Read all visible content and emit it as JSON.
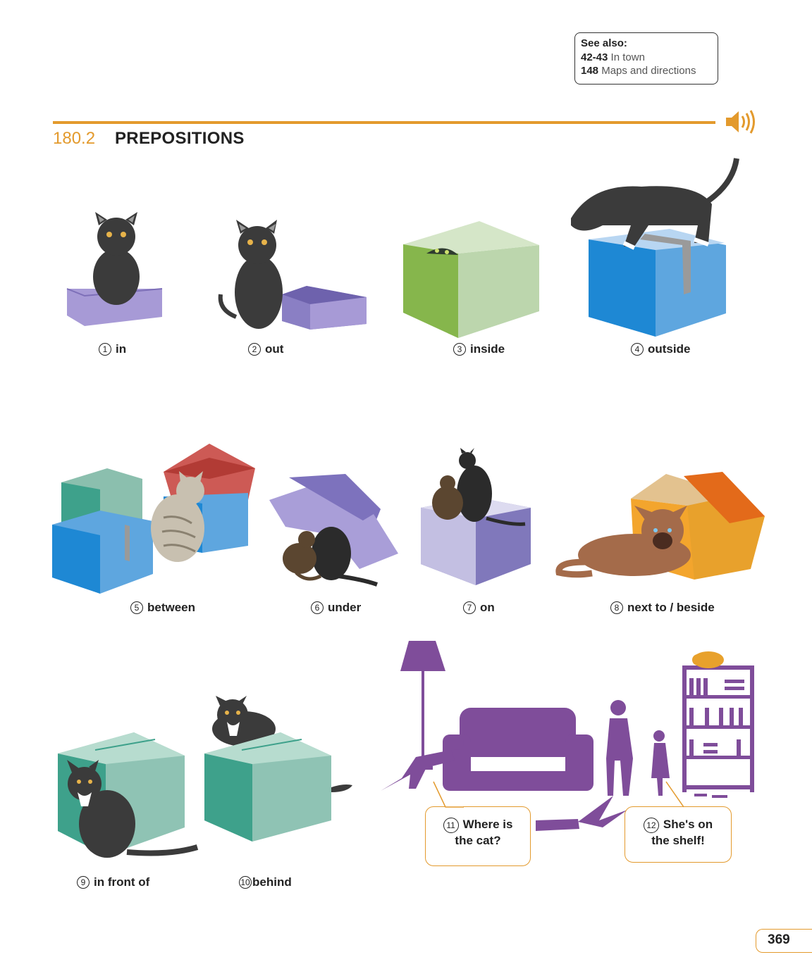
{
  "see_also": {
    "heading": "See also:",
    "items": [
      {
        "ref": "42-43",
        "text": "In town"
      },
      {
        "ref": "148",
        "text": "Maps and directions"
      }
    ]
  },
  "section": {
    "number": "180.2",
    "title": "PREPOSITIONS"
  },
  "items": [
    {
      "num": "1",
      "label": "in"
    },
    {
      "num": "2",
      "label": "out"
    },
    {
      "num": "3",
      "label": "inside"
    },
    {
      "num": "4",
      "label": "outside"
    },
    {
      "num": "5",
      "label": "between"
    },
    {
      "num": "6",
      "label": "under"
    },
    {
      "num": "7",
      "label": "on"
    },
    {
      "num": "8",
      "label": "next to / beside"
    },
    {
      "num": "9",
      "label": "in front of"
    },
    {
      "num": "10",
      "label": "behind"
    }
  ],
  "bubbles": [
    {
      "num": "11",
      "line1": "Where is",
      "line2": "the cat?"
    },
    {
      "num": "12",
      "line1": "She's on",
      "line2": "the shelf!"
    }
  ],
  "page_number": "369",
  "colors": {
    "accent": "#e39a2d",
    "purple": "#7f4d9a"
  },
  "icons": [
    "speaker-icon"
  ]
}
